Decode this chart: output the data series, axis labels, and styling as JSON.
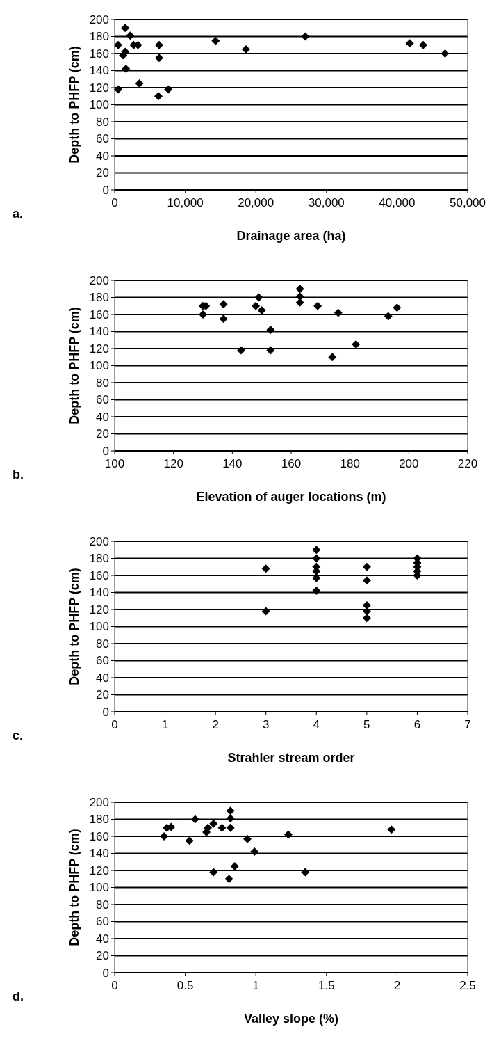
{
  "chart_data": [
    {
      "type": "scatter",
      "xlabel": "Drainage area (ha)",
      "ylabel": "Depth to PHFP (cm)",
      "annotations": [
        "a."
      ],
      "marker": "diamond",
      "grid": "y",
      "color": "#000000",
      "x": [
        500,
        500,
        1200,
        1500,
        1500,
        1600,
        2200,
        2700,
        3300,
        3500,
        6200,
        6300,
        6300,
        7600,
        14300,
        18600,
        27000,
        41800,
        43700,
        46800
      ],
      "values": [
        170,
        118,
        158,
        162,
        190,
        142,
        181,
        170,
        170,
        125,
        110,
        170,
        155,
        118,
        175,
        165,
        180,
        172,
        170,
        160
      ],
      "xlim": [
        0,
        50000
      ],
      "xticks": [
        0,
        {
          "value": 10000,
          "label": "10,000"
        },
        {
          "value": 20000,
          "label": "20,000"
        },
        {
          "value": 30000,
          "label": "30,000"
        },
        {
          "value": 40000,
          "label": "40,000"
        },
        {
          "value": 50000,
          "label": "50,000"
        }
      ],
      "ylim": [
        0,
        200
      ],
      "yticks": [
        0,
        20,
        40,
        60,
        80,
        100,
        120,
        140,
        160,
        180,
        200
      ]
    },
    {
      "type": "scatter",
      "xlabel": "Elevation of auger locations (m)",
      "ylabel": "Depth to PHFP (cm)",
      "annotations": [
        "b."
      ],
      "marker": "diamond",
      "grid": "y",
      "color": "#000000",
      "x": [
        130,
        130,
        131,
        137,
        137,
        143,
        148,
        149,
        150,
        153,
        153,
        163,
        163,
        163,
        169,
        174,
        176,
        182,
        193,
        196
      ],
      "values": [
        170,
        160,
        170,
        172,
        155,
        118,
        170,
        180,
        165,
        142,
        118,
        190,
        181,
        174,
        170,
        110,
        162,
        125,
        158,
        168
      ],
      "xlim": [
        100,
        220
      ],
      "xticks": [
        100,
        120,
        140,
        160,
        180,
        200,
        220
      ],
      "ylim": [
        0,
        200
      ],
      "yticks": [
        0,
        20,
        40,
        60,
        80,
        100,
        120,
        140,
        160,
        180,
        200
      ]
    },
    {
      "type": "scatter",
      "xlabel": "Strahler stream order",
      "ylabel": "Depth to PHFP (cm)",
      "annotations": [
        "c."
      ],
      "marker": "diamond",
      "grid": "y",
      "color": "#000000",
      "x": [
        3,
        3,
        4,
        4,
        4,
        4,
        4,
        4,
        5,
        5,
        5,
        5,
        5,
        6,
        6,
        6,
        6,
        6
      ],
      "values": [
        168,
        118,
        190,
        180,
        170,
        165,
        157,
        142,
        170,
        154,
        125,
        118,
        110,
        180,
        175,
        170,
        165,
        160
      ],
      "xlim": [
        0,
        7
      ],
      "xticks": [
        0,
        1,
        2,
        3,
        4,
        5,
        6,
        7
      ],
      "ylim": [
        0,
        200
      ],
      "yticks": [
        0,
        20,
        40,
        60,
        80,
        100,
        120,
        140,
        160,
        180,
        200
      ]
    },
    {
      "type": "scatter",
      "xlabel": "Valley slope (%)",
      "ylabel": "Depth to PHFP (cm)",
      "annotations": [
        "d."
      ],
      "marker": "diamond",
      "grid": "y",
      "color": "#000000",
      "x": [
        0.35,
        0.37,
        0.4,
        0.53,
        0.57,
        0.65,
        0.66,
        0.7,
        0.7,
        0.76,
        0.81,
        0.82,
        0.82,
        0.82,
        0.85,
        0.94,
        0.99,
        1.23,
        1.35,
        1.96
      ],
      "values": [
        160,
        170,
        171,
        155,
        180,
        165,
        170,
        175,
        118,
        170,
        110,
        190,
        181,
        170,
        125,
        157,
        142,
        162,
        118,
        168
      ],
      "xlim": [
        0,
        2.5
      ],
      "xticks": [
        0,
        0.5,
        1,
        1.5,
        2,
        2.5
      ],
      "ylim": [
        0,
        200
      ],
      "yticks": [
        0,
        20,
        40,
        60,
        80,
        100,
        120,
        140,
        160,
        180,
        200
      ]
    }
  ]
}
